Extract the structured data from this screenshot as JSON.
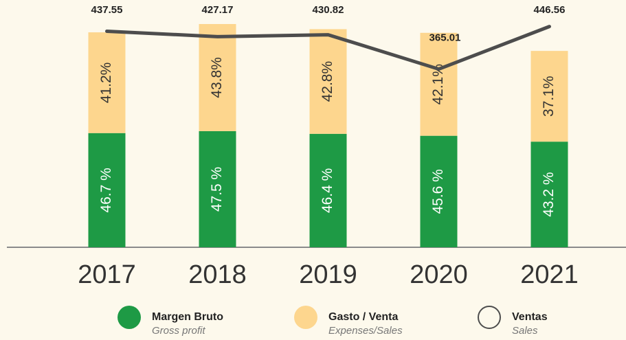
{
  "chart_data": {
    "type": "bar-line",
    "categories": [
      "2017",
      "2018",
      "2019",
      "2020",
      "2021"
    ],
    "series": [
      {
        "name": "Margen Bruto",
        "subtitle": "Gross profit",
        "color": "#1e9a45",
        "kind": "bar",
        "values": [
          46.7,
          47.5,
          46.4,
          45.6,
          43.2
        ],
        "value_labels": [
          "46.7 %",
          "47.5 %",
          "46.4 %",
          "45.6 %",
          "43.2 %"
        ]
      },
      {
        "name": "Gasto / Venta",
        "subtitle": "Expenses/Sales",
        "color": "#fdd68e",
        "kind": "bar",
        "values": [
          41.2,
          43.8,
          42.8,
          42.1,
          37.1
        ],
        "value_labels": [
          "41.2%",
          "43.8%",
          "42.8%",
          "42.1%",
          "37.1%"
        ]
      },
      {
        "name": "Ventas",
        "subtitle": "Sales",
        "color": "#4d4d4d",
        "kind": "line",
        "values": [
          437.55,
          427.17,
          430.82,
          365.01,
          446.56
        ]
      }
    ]
  }
}
